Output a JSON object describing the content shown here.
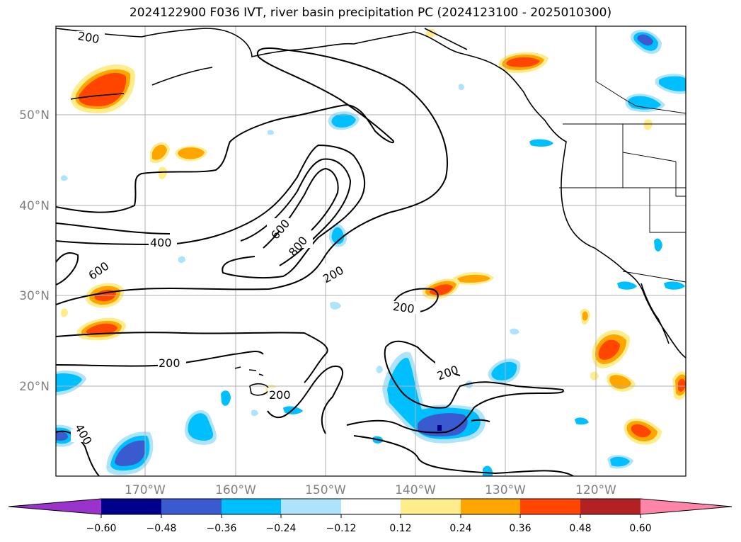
{
  "title": "2024122900 F036 IVT, river basin precipitation PC (2024123100 - 2025010300)",
  "map": {
    "lat_labels": [
      "50°N",
      "40°N",
      "30°N",
      "20°N"
    ],
    "lon_labels": [
      "170°W",
      "160°W",
      "150°W",
      "140°W",
      "130°W",
      "120°W"
    ],
    "ivt_contour_labels": [
      "200",
      "200",
      "200",
      "200",
      "200",
      "400",
      "400",
      "600",
      "600",
      "800",
      "200"
    ],
    "grid": true,
    "colors": {
      "coastline": "#000000",
      "gridline": "#b0b0b0",
      "axis_tick_label": "#808080"
    }
  },
  "colorbar": {
    "tick_labels": [
      "−0.60",
      "−0.48",
      "−0.36",
      "−0.24",
      "−0.12",
      "0.12",
      "0.24",
      "0.36",
      "0.48",
      "0.60"
    ],
    "colors": [
      "#9933cc",
      "#00008b",
      "#3a5bd0",
      "#00bfff",
      "#aee4fb",
      "#ffffff",
      "#ffec8b",
      "#ffa500",
      "#ff4500",
      "#b22222",
      "#ff85a8"
    ]
  }
}
